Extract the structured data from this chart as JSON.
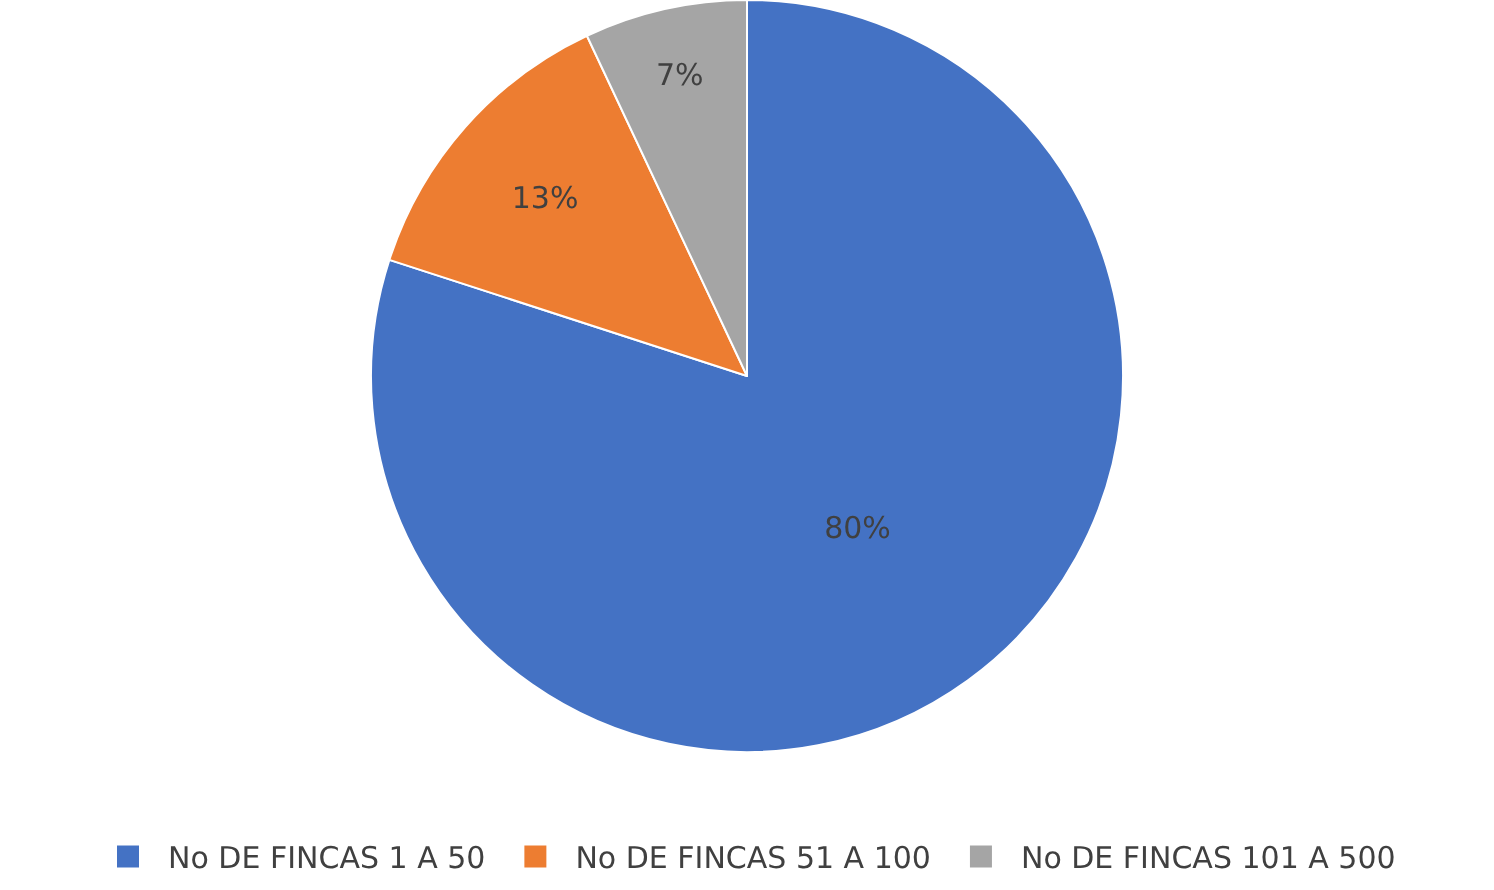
{
  "chart_data": {
    "type": "pie",
    "categories": [
      "No DE FINCAS 1 A 50",
      "No DE FINCAS 51 A 100",
      "No DE FINCAS 101 A 500"
    ],
    "values": [
      80,
      13,
      7
    ],
    "colors": [
      "#4472c4",
      "#ed7d31",
      "#a5a5a5"
    ],
    "value_labels": [
      "80%",
      "13%",
      "7%"
    ],
    "legend": "bottom"
  }
}
